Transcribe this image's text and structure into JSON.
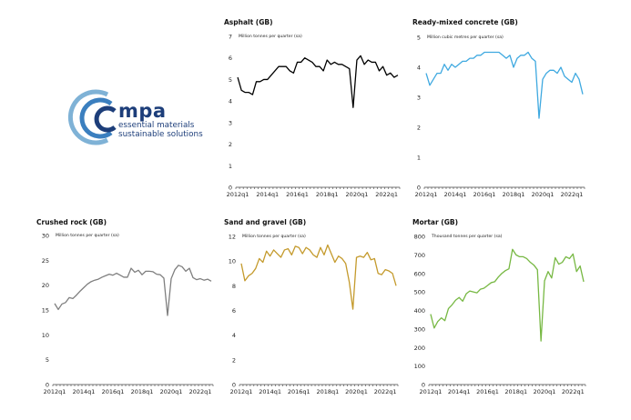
{
  "logo": {
    "brand": "mpa",
    "tagline1": "essential materials",
    "tagline2": "sustainable solutions"
  },
  "x_tick_labels": [
    "2012q1",
    "2014q1",
    "2016q1",
    "2018q1",
    "2020q1",
    "2022q1"
  ],
  "chart_data": [
    {
      "id": "asphalt",
      "type": "line",
      "title": "Asphalt (GB)",
      "ylabel": "Million tonnes per quarter (sa)",
      "ylim": [
        0,
        7
      ],
      "yticks": [
        0,
        1,
        2,
        3,
        4,
        5,
        6,
        7
      ],
      "color": "#000000",
      "x_start": "2012q1",
      "values": [
        5.1,
        4.5,
        4.4,
        4.4,
        4.3,
        4.9,
        4.9,
        5.0,
        5.0,
        5.2,
        5.4,
        5.6,
        5.6,
        5.6,
        5.4,
        5.3,
        5.8,
        5.8,
        6.0,
        5.9,
        5.8,
        5.6,
        5.6,
        5.4,
        5.9,
        5.7,
        5.8,
        5.7,
        5.7,
        5.6,
        5.5,
        3.7,
        5.9,
        6.1,
        5.7,
        5.9,
        5.8,
        5.8,
        5.4,
        5.6,
        5.2,
        5.3,
        5.1,
        5.2
      ]
    },
    {
      "id": "ready-mixed-concrete",
      "type": "line",
      "title": "Ready-mixed concrete (GB)",
      "ylabel": "Million cubic metres per quarter (sa)",
      "ylim": [
        0,
        5
      ],
      "yticks": [
        0,
        1,
        2,
        3,
        4,
        5
      ],
      "color": "#3fa9e0",
      "x_start": "2012q1",
      "values": [
        3.8,
        3.4,
        3.6,
        3.8,
        3.8,
        4.1,
        3.9,
        4.1,
        4.0,
        4.1,
        4.2,
        4.2,
        4.3,
        4.3,
        4.4,
        4.4,
        4.5,
        4.5,
        4.5,
        4.5,
        4.5,
        4.4,
        4.3,
        4.4,
        4.0,
        4.3,
        4.4,
        4.4,
        4.5,
        4.3,
        4.2,
        2.3,
        3.6,
        3.8,
        3.9,
        3.9,
        3.8,
        4.0,
        3.7,
        3.6,
        3.5,
        3.8,
        3.6,
        3.1
      ]
    },
    {
      "id": "crushed-rock",
      "type": "line",
      "title": "Crushed rock (GB)",
      "ylabel": "Million tonnes per quarter (sa)",
      "ylim": [
        0,
        30
      ],
      "yticks": [
        0,
        5,
        10,
        15,
        20,
        25,
        30
      ],
      "color": "#7f7f7f",
      "x_start": "2012q1",
      "values": [
        16.3,
        15.1,
        16.2,
        16.5,
        17.5,
        17.3,
        18.0,
        18.8,
        19.5,
        20.2,
        20.7,
        21.0,
        21.2,
        21.6,
        21.9,
        22.2,
        22.0,
        22.4,
        22.0,
        21.6,
        21.6,
        23.4,
        22.6,
        23.0,
        22.1,
        22.8,
        22.8,
        22.7,
        22.2,
        22.1,
        21.4,
        13.9,
        21.3,
        23.1,
        24.0,
        23.7,
        22.8,
        23.4,
        21.5,
        21.1,
        21.3,
        21.0,
        21.2,
        20.8
      ]
    },
    {
      "id": "sand-and-gravel",
      "type": "line",
      "title": "Sand and gravel (GB)",
      "ylabel": "Million tonnes per quarter (sa)",
      "ylim": [
        0,
        12
      ],
      "yticks": [
        0,
        2,
        4,
        6,
        8,
        10,
        12
      ],
      "color": "#c49a2c",
      "x_start": "2012q1",
      "values": [
        9.8,
        8.4,
        8.8,
        9.0,
        9.4,
        10.2,
        9.9,
        10.8,
        10.4,
        10.9,
        10.6,
        10.3,
        10.9,
        11.0,
        10.5,
        11.2,
        11.1,
        10.6,
        11.1,
        10.9,
        10.5,
        10.3,
        11.1,
        10.5,
        11.3,
        10.6,
        9.9,
        10.4,
        10.2,
        9.8,
        8.3,
        6.1,
        10.3,
        10.4,
        10.3,
        10.7,
        10.1,
        10.2,
        9.0,
        8.9,
        9.3,
        9.2,
        9.0,
        8.0
      ]
    },
    {
      "id": "mortar",
      "type": "line",
      "title": "Mortar (GB)",
      "ylabel": "Thousand tonnes per quarter (sa)",
      "ylim": [
        0,
        800
      ],
      "yticks": [
        0,
        100,
        200,
        300,
        400,
        500,
        600,
        700,
        800
      ],
      "color": "#77b843",
      "x_start": "2012q1",
      "values": [
        380,
        305,
        340,
        360,
        345,
        410,
        430,
        455,
        470,
        450,
        490,
        505,
        500,
        495,
        515,
        520,
        535,
        550,
        555,
        580,
        600,
        615,
        625,
        730,
        700,
        690,
        690,
        680,
        660,
        645,
        620,
        235,
        560,
        610,
        575,
        685,
        650,
        660,
        690,
        680,
        705,
        610,
        640,
        555
      ]
    }
  ]
}
